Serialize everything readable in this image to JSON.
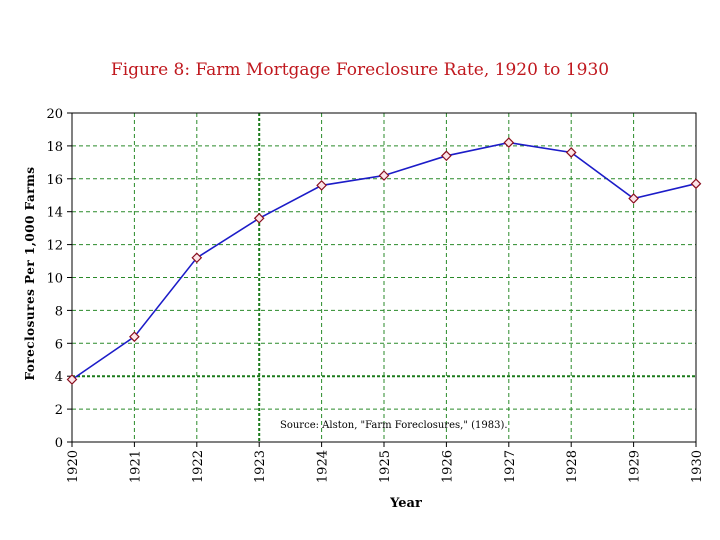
{
  "chart_data": {
    "type": "line",
    "title": "Figure 8: Farm Mortgage Foreclosure Rate, 1920 to 1930",
    "xlabel": "Year",
    "ylabel": "Foreclosures Per 1,000 Farms",
    "x": [
      "1920",
      "1921",
      "1922",
      "1923",
      "1924",
      "1925",
      "1926",
      "1927",
      "1928",
      "1929",
      "1930"
    ],
    "series": [
      {
        "values": [
          3.8,
          6.4,
          11.2,
          13.6,
          15.6,
          16.2,
          17.4,
          18.2,
          17.6,
          14.8,
          15.7
        ]
      }
    ],
    "ylim": [
      0,
      20
    ],
    "yticks": [
      0,
      2,
      4,
      6,
      8,
      10,
      12,
      14,
      16,
      18,
      20
    ],
    "grid": true,
    "annotation": "Source: Alston, \"Farm Foreclosures,\" (1983).",
    "colors": {
      "title": "#c0181e",
      "line": "#1c1cc8",
      "marker_fill": "#fce4e8",
      "marker_stroke": "#8a1020",
      "grid": "#2a8a2a",
      "grid_strong": "#1a7a1a",
      "axis": "#000000"
    }
  }
}
